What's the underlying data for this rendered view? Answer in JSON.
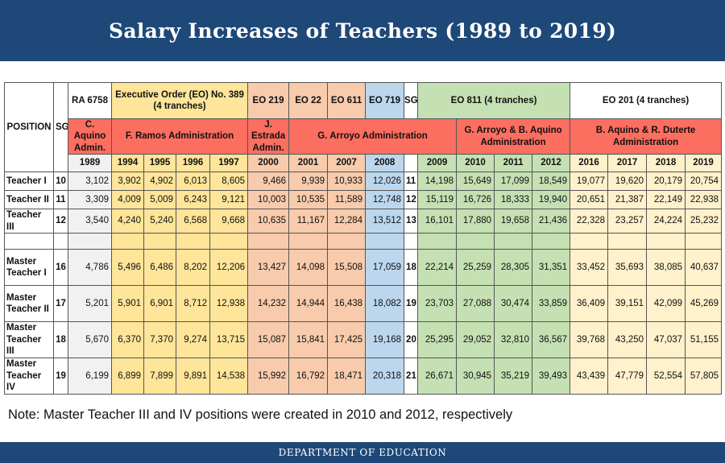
{
  "title": "Salary Increases of Teachers (1989 to 2019)",
  "footer": "DEPARTMENT OF EDUCATION",
  "note": "Note: Master Teacher III and IV positions were created in 2010 and 2012, respectively",
  "header": {
    "position": "POSITION",
    "sg": "SG",
    "sg2": "SG",
    "laws": {
      "ra6758": "RA 6758",
      "eo389": "Executive Order (EO) No. 389 (4 tranches)",
      "eo219": "EO 219",
      "eo22": "EO 22",
      "eo611": "EO 611",
      "eo719": "EO 719",
      "eo811": "EO 811 (4 tranches)",
      "eo201": "EO 201 (4 tranches)"
    },
    "admins": {
      "caquino": "C. Aquino Admin.",
      "ramos": "F. Ramos Administration",
      "estrada": "J. Estrada Admin.",
      "arroyo": "G. Arroyo Administration",
      "arroyo_aquino": "G. Arroyo & B. Aquino Administration",
      "aquino_duterte": "B. Aquino & R. Duterte Administration"
    },
    "years": [
      "1989",
      "1994",
      "1995",
      "1996",
      "1997",
      "2000",
      "2001",
      "2007",
      "2008",
      "2009",
      "2010",
      "2011",
      "2012",
      "2016",
      "2017",
      "2018",
      "2019"
    ]
  },
  "rows": [
    {
      "position": "Teacher I",
      "sg": "10",
      "sg2": "11",
      "values": [
        "3,102",
        "3,902",
        "4,902",
        "6,013",
        "8,605",
        "9,466",
        "9,939",
        "10,933",
        "12,026",
        "14,198",
        "15,649",
        "17,099",
        "18,549",
        "19,077",
        "19,620",
        "20,179",
        "20,754"
      ]
    },
    {
      "position": "Teacher II",
      "sg": "11",
      "sg2": "12",
      "values": [
        "3,309",
        "4,009",
        "5,009",
        "6,243",
        "9,121",
        "10,003",
        "10,535",
        "11,589",
        "12,748",
        "15,119",
        "16,726",
        "18,333",
        "19,940",
        "20,651",
        "21,387",
        "22,149",
        "22,938"
      ]
    },
    {
      "position": "Teacher III",
      "sg": "12",
      "sg2": "13",
      "values": [
        "3,540",
        "4,240",
        "5,240",
        "6,568",
        "9,668",
        "10,635",
        "11,167",
        "12,284",
        "13,512",
        "16,101",
        "17,880",
        "19,658",
        "21,436",
        "22,328",
        "23,257",
        "24,224",
        "25,232"
      ]
    },
    {
      "position": "Master Teacher I",
      "sg": "16",
      "sg2": "18",
      "values": [
        "4,786",
        "5,496",
        "6,486",
        "8,202",
        "12,206",
        "13,427",
        "14,098",
        "15,508",
        "17,059",
        "22,214",
        "25,259",
        "28,305",
        "31,351",
        "33,452",
        "35,693",
        "38,085",
        "40,637"
      ]
    },
    {
      "position": "Master Teacher II",
      "sg": "17",
      "sg2": "19",
      "values": [
        "5,201",
        "5,901",
        "6,901",
        "8,712",
        "12,938",
        "14,232",
        "14,944",
        "16,438",
        "18,082",
        "23,703",
        "27,088",
        "30,474",
        "33,859",
        "36,409",
        "39,151",
        "42,099",
        "45,269"
      ]
    },
    {
      "position": "Master Teacher III",
      "sg": "18",
      "sg2": "20",
      "values": [
        "5,670",
        "6,370",
        "7,370",
        "9,274",
        "13,715",
        "15,087",
        "15,841",
        "17,425",
        "19,168",
        "25,295",
        "29,052",
        "32,810",
        "36,567",
        "39,768",
        "43,250",
        "47,037",
        "51,155"
      ]
    },
    {
      "position": "Master Teacher IV",
      "sg": "19",
      "sg2": "21",
      "values": [
        "6,199",
        "6,899",
        "7,899",
        "9,891",
        "14,538",
        "15,992",
        "16,792",
        "18,471",
        "20,318",
        "26,671",
        "30,945",
        "35,219",
        "39,493",
        "43,439",
        "47,779",
        "52,554",
        "57,805"
      ]
    }
  ],
  "colors": {
    "title_bar": "#1e4878",
    "admin_row": "#fb6e60",
    "eo389": "#fee599",
    "eo219_611": "#f7cbac",
    "eo719": "#bcd6ee",
    "eo811": "#c5e0b3",
    "eo201": "#fff1cb",
    "ra6758": "#f1f1f1"
  }
}
